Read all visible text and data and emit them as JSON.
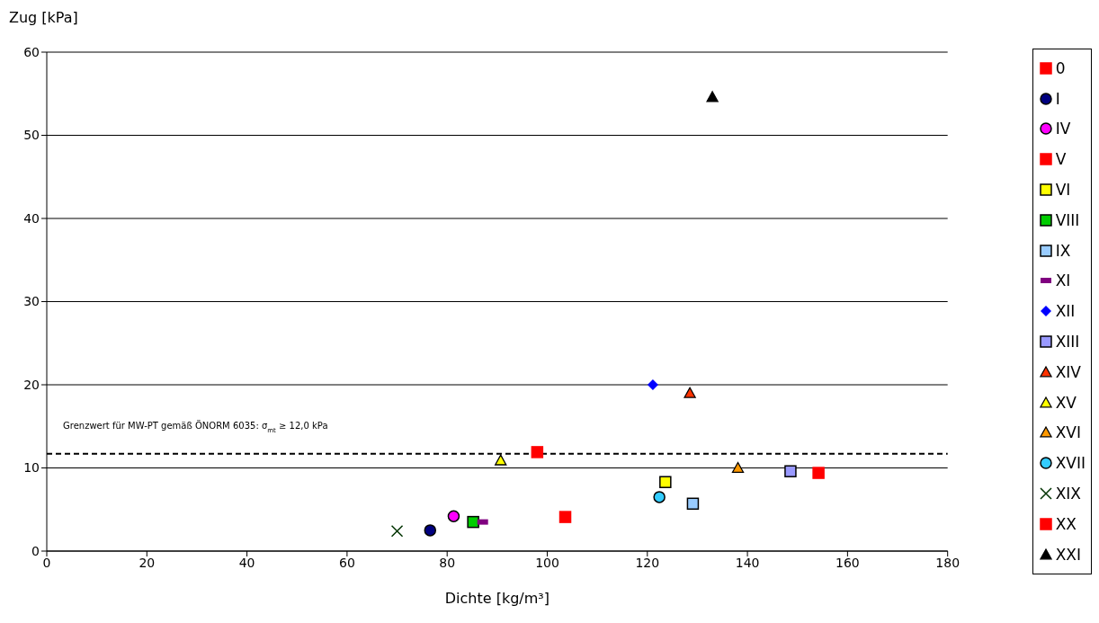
{
  "chart_data": {
    "type": "scatter",
    "xlabel": "Dichte [kg/m³]",
    "ylabel": "Zug [kPa]",
    "xlim": [
      0,
      180
    ],
    "xticks": [
      0,
      20,
      40,
      60,
      80,
      100,
      120,
      140,
      160,
      180
    ],
    "ylim": [
      0,
      60
    ],
    "yticks": [
      0,
      10,
      20,
      30,
      40,
      50,
      60
    ],
    "grid": "y",
    "legend": "right",
    "ref_lines": [
      {
        "axis": "y",
        "value": 11.7,
        "label": "Grenzwert für MW-PT gemäß ÖNORM 6035: σ$_{mt}$ ≥ 12,0 kPa",
        "line_style": "dashed",
        "color": "#000000"
      }
    ],
    "series": [
      {
        "name": "0",
        "color": "#ff0000",
        "marker": "square",
        "x": [
          98.0
        ],
        "values": [
          11.9
        ]
      },
      {
        "name": "I",
        "color": "#000080",
        "marker": "circle",
        "x": [
          76.6
        ],
        "values": [
          2.5
        ]
      },
      {
        "name": "IV",
        "color": "#ff00ff",
        "marker": "circle",
        "x": [
          81.3
        ],
        "values": [
          4.2
        ]
      },
      {
        "name": "V",
        "color": "#ff0000",
        "marker": "square",
        "x": [
          103.6
        ],
        "values": [
          4.1
        ]
      },
      {
        "name": "VI",
        "color": "#ffff00",
        "marker": "square",
        "x": [
          123.6
        ],
        "values": [
          8.3
        ]
      },
      {
        "name": "VIII",
        "color": "#00cc00",
        "marker": "square",
        "x": [
          85.2
        ],
        "values": [
          3.5
        ]
      },
      {
        "name": "IX",
        "color": "#99ccff",
        "marker": "square",
        "x": [
          129.1
        ],
        "values": [
          5.7
        ]
      },
      {
        "name": "XI",
        "color": "#800080",
        "x": [
          87.1
        ],
        "values": [
          3.5
        ]
      },
      {
        "name": "XII",
        "color": "#0000ff",
        "marker": "diamond",
        "x": [
          121.1
        ],
        "values": [
          20.0
        ]
      },
      {
        "name": "XIII",
        "color": "#9999ff",
        "marker": "square",
        "x": [
          148.6
        ],
        "values": [
          9.6
        ]
      },
      {
        "name": "XIV",
        "color": "#ff3300",
        "marker": "triangle",
        "x": [
          128.5
        ],
        "values": [
          19.0
        ]
      },
      {
        "name": "XV",
        "color": "#ffff00",
        "marker": "triangle",
        "x": [
          90.7
        ],
        "values": [
          10.9
        ]
      },
      {
        "name": "XVI",
        "color": "#ff9900",
        "marker": "triangle",
        "x": [
          138.1
        ],
        "values": [
          10.0
        ]
      },
      {
        "name": "XVII",
        "color": "#33ccff",
        "marker": "circle",
        "x": [
          122.4
        ],
        "values": [
          6.5
        ]
      },
      {
        "name": "XIX",
        "color": "#003300",
        "marker": "cross",
        "x": [
          70.0
        ],
        "values": [
          2.4
        ]
      },
      {
        "name": "XX",
        "color": "#ff0000",
        "marker": "square",
        "x": [
          154.2
        ],
        "values": [
          9.4
        ]
      },
      {
        "name": "XXI",
        "color": "#000000",
        "marker": "triangle",
        "x": [
          133.0
        ],
        "values": [
          54.6
        ]
      }
    ]
  }
}
